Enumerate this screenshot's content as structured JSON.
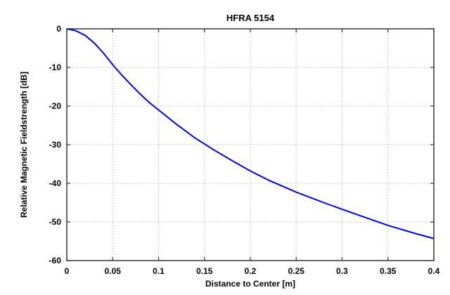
{
  "chart_data": {
    "type": "line",
    "title": "HFRA 5154",
    "xlabel": "Distance to Center [m]",
    "ylabel": "Relative Magnetic Fieldstrength [dB]",
    "xlim": [
      0,
      0.4
    ],
    "ylim": [
      -60,
      0
    ],
    "xticks": [
      "0",
      "0.05",
      "0.1",
      "0.15",
      "0.2",
      "0.25",
      "0.3",
      "0.35",
      "0.4"
    ],
    "yticks": [
      "0",
      "-10",
      "-20",
      "-30",
      "-40",
      "-50",
      "-60"
    ],
    "grid": true,
    "legend": null,
    "series": [
      {
        "name": "HFRA 5154",
        "color": "#0000ee",
        "x": [
          0,
          0.01,
          0.02,
          0.03,
          0.04,
          0.05,
          0.06,
          0.07,
          0.08,
          0.09,
          0.1,
          0.12,
          0.14,
          0.15,
          0.16,
          0.18,
          0.2,
          0.22,
          0.25,
          0.28,
          0.3,
          0.32,
          0.35,
          0.38,
          0.4
        ],
        "y": [
          0,
          -0.5,
          -1.7,
          -3.7,
          -6.3,
          -9.3,
          -12.0,
          -14.5,
          -16.9,
          -19.1,
          -21.0,
          -24.8,
          -28.3,
          -29.8,
          -31.3,
          -34.1,
          -36.8,
          -39.2,
          -42.3,
          -45.0,
          -46.7,
          -48.4,
          -50.9,
          -53.0,
          -54.3
        ]
      }
    ]
  }
}
